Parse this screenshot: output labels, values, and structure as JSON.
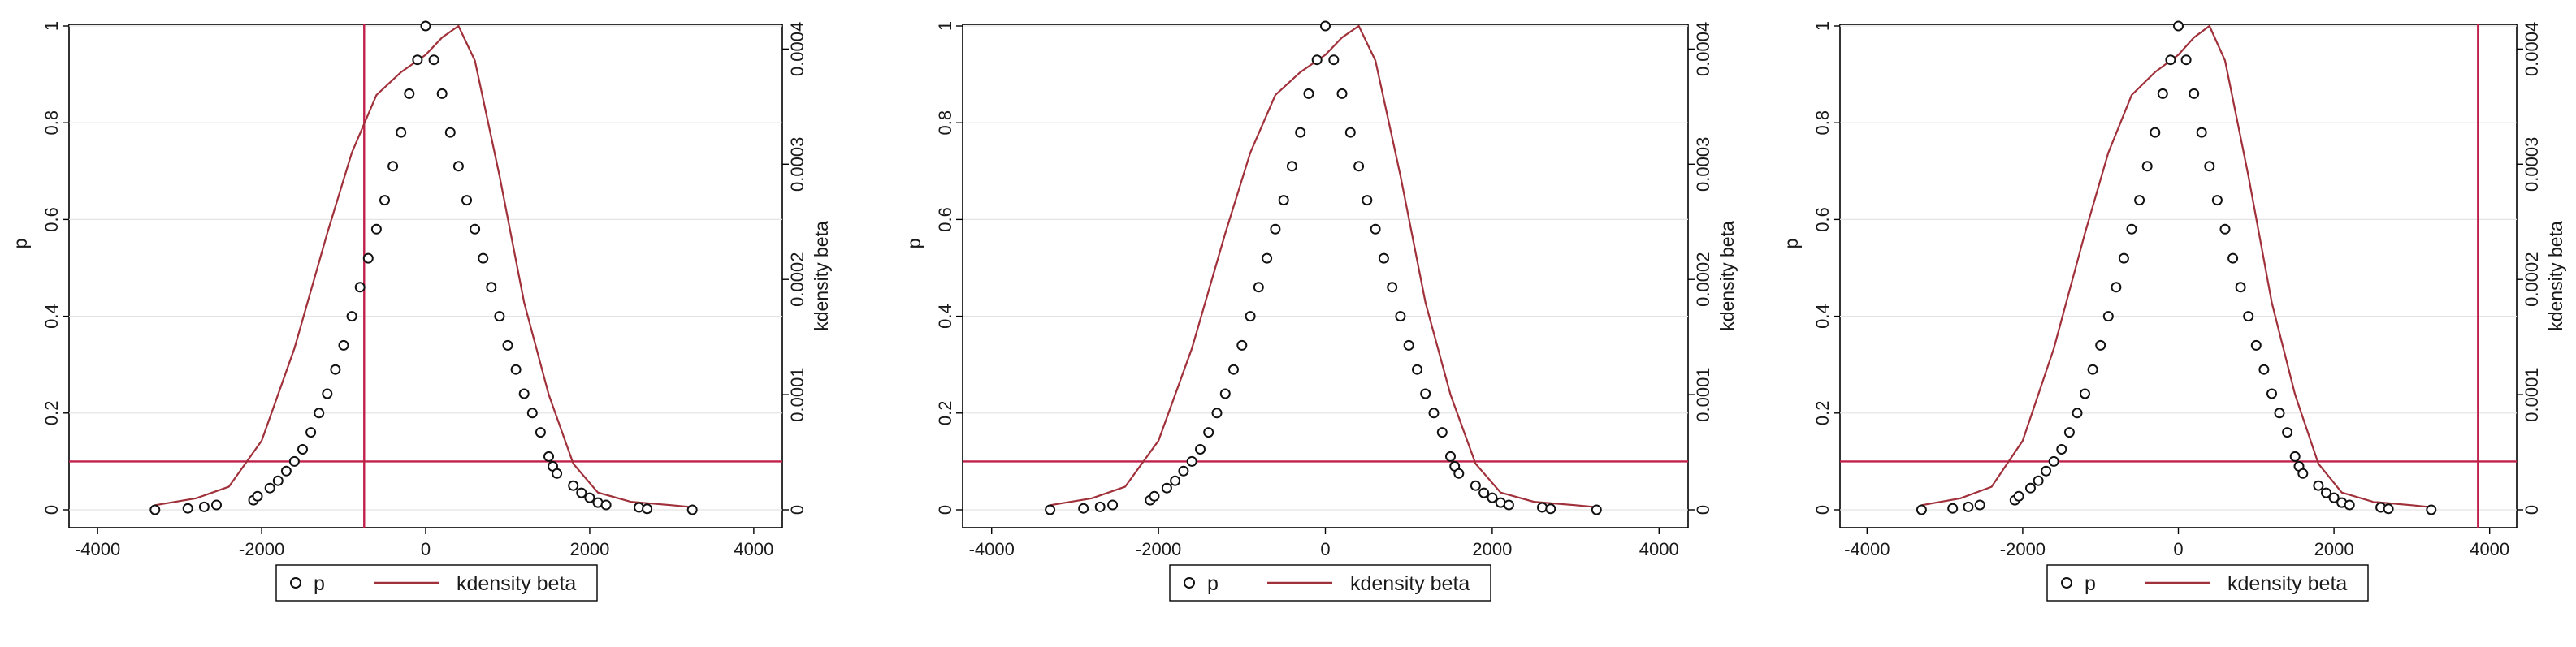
{
  "chart_data": [
    {
      "type": "scatter",
      "title": "",
      "xlabel": "",
      "ylabel": "p",
      "y2label": "kdensity beta",
      "xlim": [
        -4000,
        4000
      ],
      "ylim": [
        0,
        1
      ],
      "y2lim": [
        0,
        0.00042
      ],
      "xticks": [
        "-4000",
        "-2000",
        "0",
        "2000",
        "4000"
      ],
      "yticks": [
        "0",
        "0.2",
        "0.4",
        "0.6",
        "0.8",
        "1"
      ],
      "y2ticks": [
        "0",
        "0.0001",
        "0.0002",
        "0.0003",
        "0.0004"
      ],
      "grid": true,
      "legend": "bottom",
      "vertical_line_x": -750,
      "horizontal_line_y": 0.1,
      "line_color": "#c0204a",
      "kdensity_color": "#a0303a",
      "series": [
        {
          "name": "p",
          "kind": "scatter",
          "points": [
            [
              -3300,
              0.0
            ],
            [
              -2900,
              0.003
            ],
            [
              -2700,
              0.006
            ],
            [
              -2550,
              0.01
            ],
            [
              -2100,
              0.02
            ],
            [
              -2050,
              0.028
            ],
            [
              -1900,
              0.045
            ],
            [
              -1800,
              0.06
            ],
            [
              -1700,
              0.08
            ],
            [
              -1600,
              0.1
            ],
            [
              -1500,
              0.125
            ],
            [
              -1400,
              0.16
            ],
            [
              -1300,
              0.2
            ],
            [
              -1200,
              0.24
            ],
            [
              -1100,
              0.29
            ],
            [
              -1000,
              0.34
            ],
            [
              -900,
              0.4
            ],
            [
              -800,
              0.46
            ],
            [
              -700,
              0.52
            ],
            [
              -600,
              0.58
            ],
            [
              -500,
              0.64
            ],
            [
              -400,
              0.71
            ],
            [
              -300,
              0.78
            ],
            [
              -200,
              0.86
            ],
            [
              -100,
              0.93
            ],
            [
              0,
              1.0
            ],
            [
              100,
              0.93
            ],
            [
              200,
              0.86
            ],
            [
              300,
              0.78
            ],
            [
              400,
              0.71
            ],
            [
              500,
              0.64
            ],
            [
              600,
              0.58
            ],
            [
              700,
              0.52
            ],
            [
              800,
              0.46
            ],
            [
              900,
              0.4
            ],
            [
              1000,
              0.34
            ],
            [
              1100,
              0.29
            ],
            [
              1200,
              0.24
            ],
            [
              1300,
              0.2
            ],
            [
              1400,
              0.16
            ],
            [
              1500,
              0.11
            ],
            [
              1550,
              0.09
            ],
            [
              1600,
              0.075
            ],
            [
              1800,
              0.05
            ],
            [
              1900,
              0.035
            ],
            [
              2000,
              0.025
            ],
            [
              2100,
              0.015
            ],
            [
              2200,
              0.01
            ],
            [
              2600,
              0.005
            ],
            [
              2700,
              0.002
            ],
            [
              3250,
              0.0
            ]
          ]
        },
        {
          "name": "kdensity beta",
          "kind": "line",
          "points": [
            [
              -3300,
              4e-06
            ],
            [
              -2800,
              1e-05
            ],
            [
              -2400,
              2e-05
            ],
            [
              -2000,
              6e-05
            ],
            [
              -1600,
              0.00014
            ],
            [
              -1200,
              0.00024
            ],
            [
              -900,
              0.00031
            ],
            [
              -600,
              0.00036
            ],
            [
              -300,
              0.00038
            ],
            [
              0,
              0.000395
            ],
            [
              200,
              0.00041
            ],
            [
              400,
              0.00042
            ],
            [
              600,
              0.00039
            ],
            [
              900,
              0.00029
            ],
            [
              1200,
              0.00018
            ],
            [
              1500,
              0.0001
            ],
            [
              1800,
              4e-05
            ],
            [
              2100,
              1.5e-05
            ],
            [
              2500,
              7e-06
            ],
            [
              3000,
              4e-06
            ],
            [
              3300,
              2e-06
            ]
          ]
        }
      ],
      "legend_labels": [
        "p",
        "kdensity beta"
      ]
    },
    {
      "type": "scatter",
      "title": "",
      "xlabel": "",
      "ylabel": "p",
      "y2label": "kdensity beta",
      "xlim": [
        -4000,
        4000
      ],
      "ylim": [
        0,
        1
      ],
      "y2lim": [
        0,
        0.00042
      ],
      "xticks": [
        "-4000",
        "-2000",
        "0",
        "2000",
        "4000"
      ],
      "yticks": [
        "0",
        "0.2",
        "0.4",
        "0.6",
        "0.8",
        "1"
      ],
      "y2ticks": [
        "0",
        "0.0001",
        "0.0002",
        "0.0003",
        "0.0004"
      ],
      "grid": true,
      "legend": "bottom",
      "vertical_line_x": null,
      "horizontal_line_y": 0.1,
      "line_color": "#c0204a",
      "kdensity_color": "#a0303a",
      "series": [
        {
          "name": "p",
          "kind": "scatter",
          "points": [
            [
              -3300,
              0.0
            ],
            [
              -2900,
              0.003
            ],
            [
              -2700,
              0.006
            ],
            [
              -2550,
              0.01
            ],
            [
              -2100,
              0.02
            ],
            [
              -2050,
              0.028
            ],
            [
              -1900,
              0.045
            ],
            [
              -1800,
              0.06
            ],
            [
              -1700,
              0.08
            ],
            [
              -1600,
              0.1
            ],
            [
              -1500,
              0.125
            ],
            [
              -1400,
              0.16
            ],
            [
              -1300,
              0.2
            ],
            [
              -1200,
              0.24
            ],
            [
              -1100,
              0.29
            ],
            [
              -1000,
              0.34
            ],
            [
              -900,
              0.4
            ],
            [
              -800,
              0.46
            ],
            [
              -700,
              0.52
            ],
            [
              -600,
              0.58
            ],
            [
              -500,
              0.64
            ],
            [
              -400,
              0.71
            ],
            [
              -300,
              0.78
            ],
            [
              -200,
              0.86
            ],
            [
              -100,
              0.93
            ],
            [
              0,
              1.0
            ],
            [
              100,
              0.93
            ],
            [
              200,
              0.86
            ],
            [
              300,
              0.78
            ],
            [
              400,
              0.71
            ],
            [
              500,
              0.64
            ],
            [
              600,
              0.58
            ],
            [
              700,
              0.52
            ],
            [
              800,
              0.46
            ],
            [
              900,
              0.4
            ],
            [
              1000,
              0.34
            ],
            [
              1100,
              0.29
            ],
            [
              1200,
              0.24
            ],
            [
              1300,
              0.2
            ],
            [
              1400,
              0.16
            ],
            [
              1500,
              0.11
            ],
            [
              1550,
              0.09
            ],
            [
              1600,
              0.075
            ],
            [
              1800,
              0.05
            ],
            [
              1900,
              0.035
            ],
            [
              2000,
              0.025
            ],
            [
              2100,
              0.015
            ],
            [
              2200,
              0.01
            ],
            [
              2600,
              0.005
            ],
            [
              2700,
              0.002
            ],
            [
              3250,
              0.0
            ]
          ]
        },
        {
          "name": "kdensity beta",
          "kind": "line",
          "points": [
            [
              -3300,
              4e-06
            ],
            [
              -2800,
              1e-05
            ],
            [
              -2400,
              2e-05
            ],
            [
              -2000,
              6e-05
            ],
            [
              -1600,
              0.00014
            ],
            [
              -1200,
              0.00024
            ],
            [
              -900,
              0.00031
            ],
            [
              -600,
              0.00036
            ],
            [
              -300,
              0.00038
            ],
            [
              0,
              0.000395
            ],
            [
              200,
              0.00041
            ],
            [
              400,
              0.00042
            ],
            [
              600,
              0.00039
            ],
            [
              900,
              0.00029
            ],
            [
              1200,
              0.00018
            ],
            [
              1500,
              0.0001
            ],
            [
              1800,
              4e-05
            ],
            [
              2100,
              1.5e-05
            ],
            [
              2500,
              7e-06
            ],
            [
              3000,
              4e-06
            ],
            [
              3300,
              2e-06
            ]
          ]
        }
      ],
      "legend_labels": [
        "p",
        "kdensity beta"
      ]
    },
    {
      "type": "scatter",
      "title": "",
      "xlabel": "",
      "ylabel": "p",
      "y2label": "kdensity beta",
      "xlim": [
        -4000,
        4000
      ],
      "ylim": [
        0,
        1
      ],
      "y2lim": [
        0,
        0.00042
      ],
      "xticks": [
        "-4000",
        "-2000",
        "0",
        "2000",
        "4000"
      ],
      "yticks": [
        "0",
        "0.2",
        "0.4",
        "0.6",
        "0.8",
        "1"
      ],
      "y2ticks": [
        "0",
        "0.0001",
        "0.0002",
        "0.0003",
        "0.0004"
      ],
      "grid": true,
      "legend": "bottom",
      "vertical_line_x": 3850,
      "horizontal_line_y": 0.1,
      "line_color": "#c0204a",
      "kdensity_color": "#a0303a",
      "series": [
        {
          "name": "p",
          "kind": "scatter",
          "points": [
            [
              -3300,
              0.0
            ],
            [
              -2900,
              0.003
            ],
            [
              -2700,
              0.006
            ],
            [
              -2550,
              0.01
            ],
            [
              -2100,
              0.02
            ],
            [
              -2050,
              0.028
            ],
            [
              -1900,
              0.045
            ],
            [
              -1800,
              0.06
            ],
            [
              -1700,
              0.08
            ],
            [
              -1600,
              0.1
            ],
            [
              -1500,
              0.125
            ],
            [
              -1400,
              0.16
            ],
            [
              -1300,
              0.2
            ],
            [
              -1200,
              0.24
            ],
            [
              -1100,
              0.29
            ],
            [
              -1000,
              0.34
            ],
            [
              -900,
              0.4
            ],
            [
              -800,
              0.46
            ],
            [
              -700,
              0.52
            ],
            [
              -600,
              0.58
            ],
            [
              -500,
              0.64
            ],
            [
              -400,
              0.71
            ],
            [
              -300,
              0.78
            ],
            [
              -200,
              0.86
            ],
            [
              -100,
              0.93
            ],
            [
              0,
              1.0
            ],
            [
              100,
              0.93
            ],
            [
              200,
              0.86
            ],
            [
              300,
              0.78
            ],
            [
              400,
              0.71
            ],
            [
              500,
              0.64
            ],
            [
              600,
              0.58
            ],
            [
              700,
              0.52
            ],
            [
              800,
              0.46
            ],
            [
              900,
              0.4
            ],
            [
              1000,
              0.34
            ],
            [
              1100,
              0.29
            ],
            [
              1200,
              0.24
            ],
            [
              1300,
              0.2
            ],
            [
              1400,
              0.16
            ],
            [
              1500,
              0.11
            ],
            [
              1550,
              0.09
            ],
            [
              1600,
              0.075
            ],
            [
              1800,
              0.05
            ],
            [
              1900,
              0.035
            ],
            [
              2000,
              0.025
            ],
            [
              2100,
              0.015
            ],
            [
              2200,
              0.01
            ],
            [
              2600,
              0.005
            ],
            [
              2700,
              0.002
            ],
            [
              3250,
              0.0
            ]
          ]
        },
        {
          "name": "kdensity beta",
          "kind": "line",
          "points": [
            [
              -3300,
              4e-06
            ],
            [
              -2800,
              1e-05
            ],
            [
              -2400,
              2e-05
            ],
            [
              -2000,
              6e-05
            ],
            [
              -1600,
              0.00014
            ],
            [
              -1200,
              0.00024
            ],
            [
              -900,
              0.00031
            ],
            [
              -600,
              0.00036
            ],
            [
              -300,
              0.00038
            ],
            [
              0,
              0.000395
            ],
            [
              200,
              0.00041
            ],
            [
              400,
              0.00042
            ],
            [
              600,
              0.00039
            ],
            [
              900,
              0.00029
            ],
            [
              1200,
              0.00018
            ],
            [
              1500,
              0.0001
            ],
            [
              1800,
              4e-05
            ],
            [
              2100,
              1.5e-05
            ],
            [
              2500,
              7e-06
            ],
            [
              3000,
              4e-06
            ],
            [
              3300,
              2e-06
            ]
          ]
        }
      ],
      "legend_labels": [
        "p",
        "kdensity beta"
      ]
    }
  ]
}
